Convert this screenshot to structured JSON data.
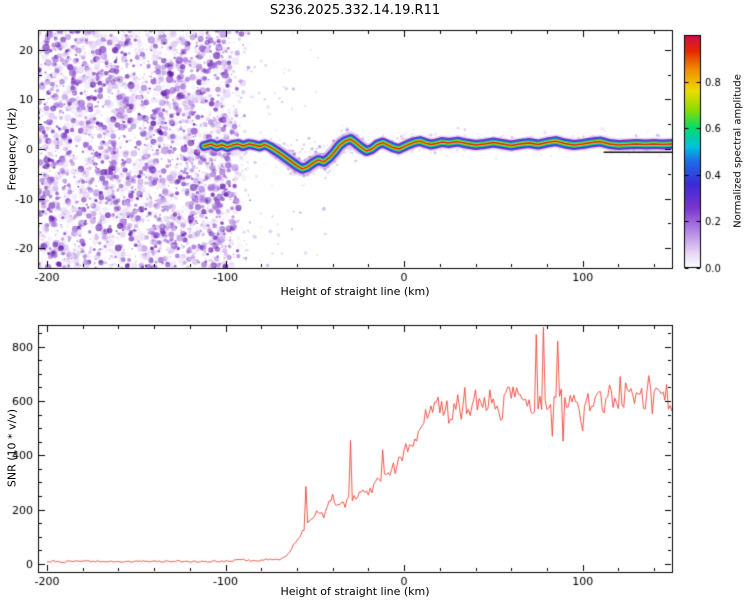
{
  "title": "S236.2025.332.14.19.R11",
  "background": "#ffffff",
  "chart_data": [
    {
      "type": "heatmap",
      "panel": "spectrogram",
      "xlabel": "Height of straight line (km)",
      "ylabel": "Frequency (Hz)",
      "xlim": [
        -205,
        150
      ],
      "ylim": [
        -24,
        24
      ],
      "xticks": [
        -200,
        -100,
        0,
        100
      ],
      "xtick_labels": [
        "-200",
        "-100",
        "0",
        "100"
      ],
      "x_minor_step": 20,
      "yticks": [
        -20,
        -10,
        0,
        10,
        20
      ],
      "ytick_labels": [
        "-20",
        "-10",
        "0",
        "10",
        "20"
      ],
      "y_minor_step": 5,
      "colorbar": {
        "label": "Normalized spectral amplitude",
        "range": [
          0,
          1
        ],
        "ticks": [
          0.0,
          0.2,
          0.4,
          0.6,
          0.8
        ],
        "tick_labels": [
          "0.0",
          "0.2",
          "0.4",
          "0.6",
          "0.8"
        ],
        "stops": [
          {
            "v": 0.0,
            "c": "#ffffff"
          },
          {
            "v": 0.06,
            "c": "#ead9f7"
          },
          {
            "v": 0.16,
            "c": "#b285e3"
          },
          {
            "v": 0.26,
            "c": "#7a34cd"
          },
          {
            "v": 0.36,
            "c": "#3b2bd6"
          },
          {
            "v": 0.46,
            "c": "#1e6ee8"
          },
          {
            "v": 0.52,
            "c": "#00c3de"
          },
          {
            "v": 0.6,
            "c": "#00dc6e"
          },
          {
            "v": 0.68,
            "c": "#8fdc00"
          },
          {
            "v": 0.76,
            "c": "#ecdc00"
          },
          {
            "v": 0.85,
            "c": "#f09000"
          },
          {
            "v": 0.93,
            "c": "#e82800"
          },
          {
            "v": 1.0,
            "c": "#cf0a4e"
          }
        ]
      },
      "noise_region": {
        "description": "dense random purple speckle noise filling all frequencies",
        "x_range": [
          -205,
          -85
        ],
        "freq_range": [
          -24,
          24
        ],
        "amplitude_range": [
          0.02,
          0.4
        ],
        "palette": [
          "#efe3fa",
          "#dcc2f2",
          "#c09ae8",
          "#9b63d8",
          "#7a33c4",
          "#5c14a8"
        ]
      },
      "sparse_noise_region": {
        "description": "fading sparse speckle between noise field and clean region",
        "x_range": [
          -105,
          -43
        ]
      },
      "signal_trace": {
        "description": "narrowband rainbow-layered signal trace near 0 Hz; dips to about -4 Hz near -55 km then oscillates around +1 Hz",
        "peak_amplitude": 0.95,
        "x": [
          -112,
          -108,
          -105,
          -102,
          -99,
          -96,
          -93,
          -90,
          -87,
          -84,
          -81,
          -78,
          -75,
          -72,
          -69,
          -66,
          -63,
          -60,
          -57,
          -54,
          -51,
          -48,
          -45,
          -42,
          -39,
          -36,
          -33,
          -30,
          -27,
          -24,
          -21,
          -18,
          -15,
          -12,
          -9,
          -6,
          -3,
          0,
          3,
          6,
          9,
          12,
          15,
          18,
          21,
          25,
          30,
          35,
          40,
          45,
          50,
          55,
          60,
          65,
          70,
          75,
          80,
          85,
          90,
          95,
          100,
          105,
          110,
          115,
          120,
          125,
          130,
          135,
          140,
          145,
          150
        ],
        "freq": [
          0.6,
          1.0,
          0.5,
          0.9,
          0.4,
          0.8,
          1.0,
          0.6,
          1.0,
          0.8,
          0.5,
          0.9,
          0.4,
          -0.3,
          -1.0,
          -1.8,
          -2.6,
          -3.4,
          -4.0,
          -3.6,
          -2.8,
          -2.2,
          -2.6,
          -1.8,
          -0.6,
          0.8,
          1.6,
          2.0,
          1.2,
          0.3,
          -0.4,
          0.0,
          0.9,
          1.3,
          0.8,
          0.3,
          0.0,
          0.5,
          1.0,
          1.4,
          1.6,
          1.2,
          0.9,
          1.1,
          1.4,
          1.2,
          1.5,
          1.1,
          0.8,
          1.0,
          1.3,
          1.0,
          0.7,
          1.0,
          1.2,
          0.9,
          1.3,
          1.6,
          1.1,
          0.8,
          1.0,
          1.3,
          1.5,
          1.0,
          0.8,
          0.9,
          1.0,
          0.9,
          1.0,
          0.9,
          1.0
        ]
      },
      "dc_line": {
        "x_range": [
          112,
          150
        ],
        "freq": -0.65,
        "color": "#151515"
      }
    },
    {
      "type": "line",
      "panel": "snr",
      "xlabel": "Height of straight line (km)",
      "ylabel": "SNR (10 * v/v)",
      "xlim": [
        -205,
        150
      ],
      "ylim": [
        -30,
        880
      ],
      "xticks": [
        -200,
        -100,
        0,
        100
      ],
      "xtick_labels": [
        "-200",
        "-100",
        "0",
        "100"
      ],
      "x_minor_step": 20,
      "yticks": [
        0,
        200,
        400,
        600,
        800
      ],
      "ytick_labels": [
        "0",
        "200",
        "400",
        "600",
        "800"
      ],
      "y_minor_step": 50,
      "color": "#ef453a",
      "series": [
        {
          "name": "SNR",
          "x": [
            -200,
            -195,
            -190,
            -185,
            -180,
            -175,
            -170,
            -165,
            -160,
            -155,
            -150,
            -145,
            -140,
            -135,
            -130,
            -125,
            -120,
            -115,
            -110,
            -105,
            -100,
            -95,
            -90,
            -85,
            -80,
            -75,
            -70,
            -65,
            -60,
            -55,
            -50,
            -45,
            -40,
            -35,
            -30,
            -25,
            -20,
            -15,
            -10,
            -5,
            0,
            5,
            10,
            15,
            20,
            25,
            30,
            35,
            40,
            45,
            50,
            55,
            60,
            65,
            70,
            75,
            80,
            85,
            90,
            95,
            100,
            105,
            110,
            115,
            120,
            125,
            130,
            135,
            140,
            145,
            150
          ],
          "values": [
            8,
            9,
            7,
            10,
            8,
            9,
            8,
            10,
            8,
            9,
            8,
            10,
            8,
            9,
            8,
            10,
            8,
            9,
            8,
            10,
            9,
            12,
            16,
            11,
            13,
            18,
            14,
            35,
            90,
            140,
            190,
            175,
            240,
            215,
            245,
            255,
            275,
            300,
            330,
            360,
            400,
            460,
            510,
            555,
            585,
            555,
            595,
            575,
            615,
            585,
            605,
            570,
            625,
            600,
            585,
            615,
            560,
            640,
            610,
            595,
            530,
            615,
            590,
            625,
            585,
            640,
            605,
            620,
            595,
            630,
            610
          ]
        }
      ],
      "spikes": [
        {
          "x": -55,
          "v": 285
        },
        {
          "x": -30,
          "v": 455
        },
        {
          "x": -12,
          "v": 420
        },
        {
          "x": 34,
          "v": 650
        },
        {
          "x": 74,
          "v": 845
        },
        {
          "x": 78,
          "v": 872
        },
        {
          "x": 83,
          "v": 470
        },
        {
          "x": 86,
          "v": 820
        },
        {
          "x": 89,
          "v": 452
        }
      ]
    }
  ]
}
